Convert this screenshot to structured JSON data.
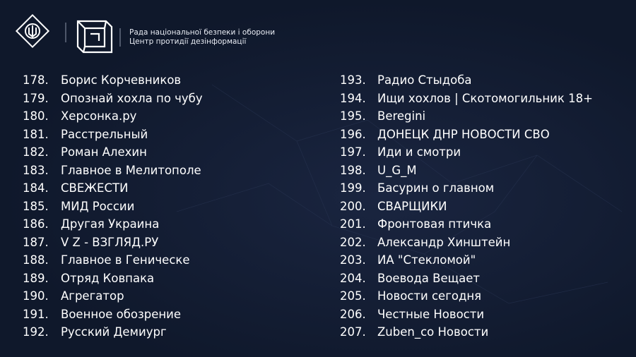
{
  "header": {
    "line1": "Рада національної безпеки і оборони",
    "line2": "Центр протидії дезінформації"
  },
  "columns": [
    {
      "items": [
        {
          "number": "178.",
          "name": "Борис Корчевников"
        },
        {
          "number": "179.",
          "name": "Опознай хохла по чубу"
        },
        {
          "number": "180.",
          "name": "Херсонка.ру"
        },
        {
          "number": "181.",
          "name": "Расстрельный"
        },
        {
          "number": "182.",
          "name": "Роман Алехин"
        },
        {
          "number": "183.",
          "name": "Главное в Мелитополе"
        },
        {
          "number": "184.",
          "name": "СВЕЖЕСТИ"
        },
        {
          "number": "185.",
          "name": "МИД России"
        },
        {
          "number": "186.",
          "name": "Другая Украина"
        },
        {
          "number": "187.",
          "name": "V Z - ВЗГЛЯД.РУ"
        },
        {
          "number": "188.",
          "name": "Главное в Геническе"
        },
        {
          "number": "189.",
          "name": "Отряд Ковпака"
        },
        {
          "number": "190.",
          "name": "Агрегатор"
        },
        {
          "number": "191.",
          "name": "Военное обозрение"
        },
        {
          "number": "192.",
          "name": "Русский Демиург"
        }
      ]
    },
    {
      "items": [
        {
          "number": "193.",
          "name": "Радио Стыдоба"
        },
        {
          "number": "194.",
          "name": "Ищи хохлов | Скотомогильник 18+"
        },
        {
          "number": "195.",
          "name": "Beregini"
        },
        {
          "number": "196.",
          "name": "ДОНЕЦК ДНР НОВОСТИ СВО"
        },
        {
          "number": "197.",
          "name": "Иди и смотри"
        },
        {
          "number": "198.",
          "name": "U_G_M"
        },
        {
          "number": "199.",
          "name": "Басурин о главном"
        },
        {
          "number": "200.",
          "name": "СВАРЩИКИ"
        },
        {
          "number": "201.",
          "name": "Фронтовая птичка"
        },
        {
          "number": "202.",
          "name": "Александр Хинштейн"
        },
        {
          "number": "203.",
          "name": "ИА \"Стекломой\""
        },
        {
          "number": "204.",
          "name": "Воевода Вещает"
        },
        {
          "number": "205.",
          "name": "Новости сегодня"
        },
        {
          "number": "206.",
          "name": "Честные Новости"
        },
        {
          "number": "207.",
          "name": "Zuben_co Новости"
        }
      ]
    }
  ]
}
